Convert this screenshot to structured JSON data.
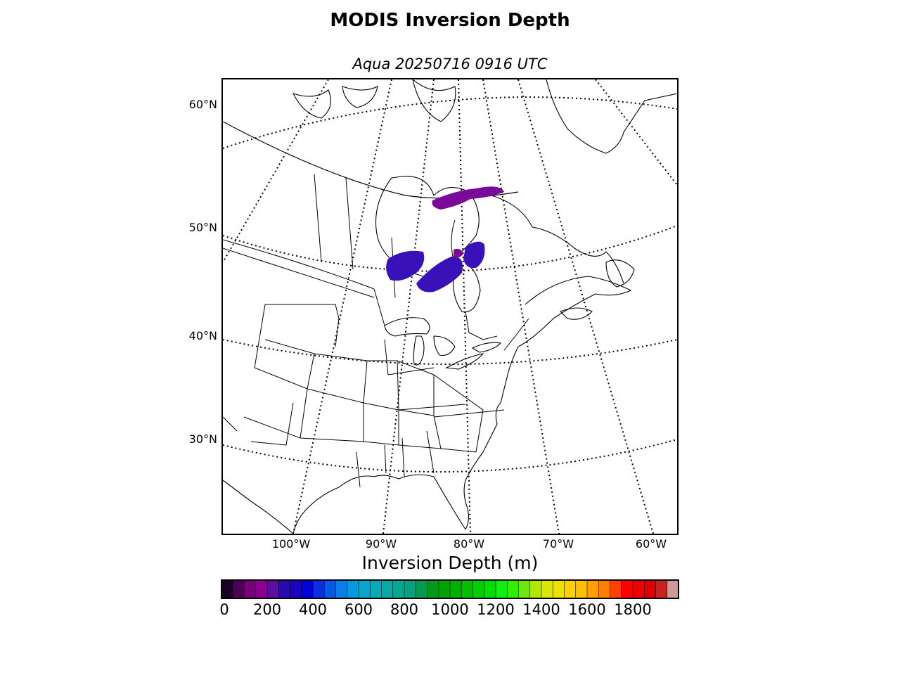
{
  "title": "MODIS Inversion Depth",
  "subtitle": "Aqua 20250716 0916 UTC",
  "map": {
    "projection": "lambert-conformal",
    "region": "Eastern North America",
    "graticule_style": "dotted",
    "lat_labels": [
      "60°N",
      "50°N",
      "40°N",
      "30°N"
    ],
    "lon_labels": [
      "100°W",
      "90°W",
      "80°W",
      "70°W",
      "60°W"
    ],
    "data_patches": [
      {
        "location": "north of Hudson Bay / near James Bay",
        "color": "#7a0a9a"
      },
      {
        "location": "northern Ontario (west)",
        "color": "#3a10b8"
      },
      {
        "location": "northern Ontario (south of James Bay)",
        "color": "#3a10b8"
      },
      {
        "location": "western Quebec",
        "color": "#3a10b8"
      }
    ]
  },
  "colorbar": {
    "label": "Inversion Depth (m)",
    "min": 0,
    "max": 1950,
    "step": 50,
    "tick_labels": [
      "0",
      "200",
      "400",
      "600",
      "800",
      "1000",
      "1200",
      "1400",
      "1600",
      "1800"
    ],
    "tick_values": [
      0,
      200,
      400,
      600,
      800,
      1000,
      1200,
      1400,
      1600,
      1800
    ],
    "colors": [
      "#1a0022",
      "#4a0055",
      "#7a007a",
      "#8a0090",
      "#5a0fa0",
      "#2a0ab0",
      "#1a06c0",
      "#0000dd",
      "#0a2ee0",
      "#0858e8",
      "#087ee8",
      "#0898e0",
      "#08a6cc",
      "#08aab8",
      "#08aaa6",
      "#08a894",
      "#08a080",
      "#069a50",
      "#049a20",
      "#00a200",
      "#00b000",
      "#00c000",
      "#00d000",
      "#00e000",
      "#10f010",
      "#30f000",
      "#70e810",
      "#b0e800",
      "#d8e800",
      "#f0e000",
      "#ffd000",
      "#ffc000",
      "#ffa000",
      "#ff8000",
      "#ff4000",
      "#ff0000",
      "#ee0000",
      "#dd0000",
      "#cc2020",
      "#d09898"
    ]
  }
}
